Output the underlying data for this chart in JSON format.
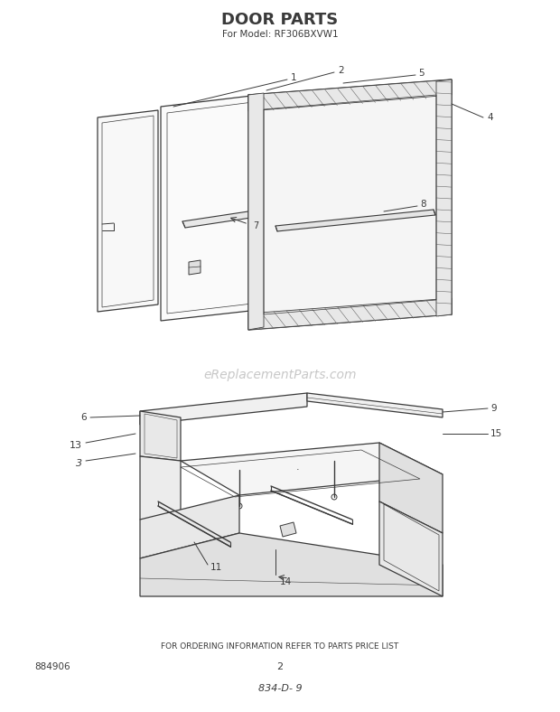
{
  "title": "Door Parts",
  "subtitle": "For Model: RF306BXVW1",
  "footer_text": "FOR ORDERING INFORMATION REFER TO PARTS PRICE LIST",
  "bottom_left": "884906",
  "bottom_center": "2",
  "bottom_code": "834-D- 9",
  "watermark": "eReplacementParts.com",
  "bg_color": "#ffffff",
  "line_color": "#3a3a3a",
  "watermark_color": "#c8c8c8"
}
